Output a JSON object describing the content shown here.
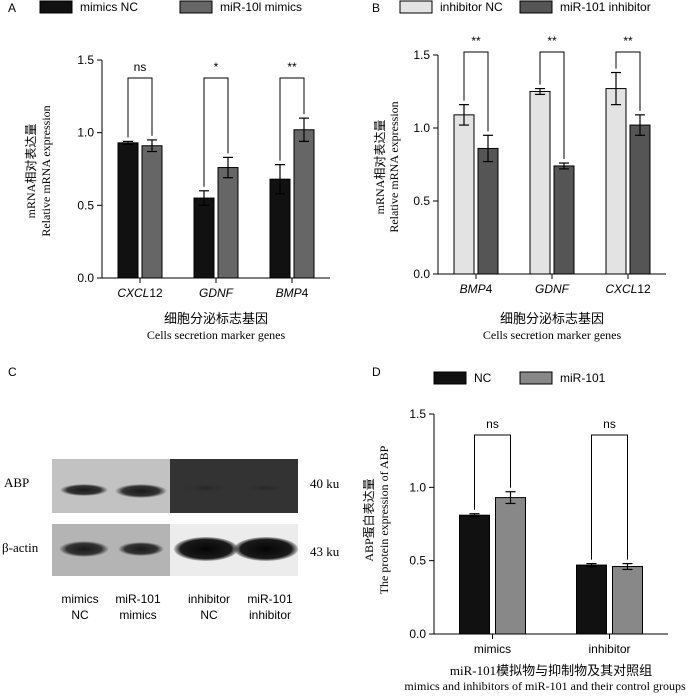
{
  "chart_data": [
    {
      "panel_label": "A",
      "type": "bar",
      "categories": [
        "CXCL12",
        "GDNF",
        "BMP4"
      ],
      "category_parts": [
        {
          "italic": "CXCL",
          "plain": "12"
        },
        {
          "italic": "GDNF",
          "plain": ""
        },
        {
          "italic": "BMP",
          "plain": "4"
        }
      ],
      "series": [
        {
          "name": "mimics NC",
          "values": [
            0.93,
            0.55,
            0.68
          ],
          "errors": [
            0.01,
            0.05,
            0.1
          ],
          "color": "#111111"
        },
        {
          "name": "miR-10l mimics",
          "values": [
            0.91,
            0.76,
            1.02
          ],
          "errors": [
            0.04,
            0.07,
            0.08
          ],
          "color": "#666666"
        }
      ],
      "significance": [
        "ns",
        "*",
        "**"
      ],
      "ylabel_cn": "mRNA相对表达量",
      "ylabel_en": "Relative mRNA expression",
      "xlabel_cn": "细胞分泌标志基因",
      "xlabel_en": "Cells secretion marker genes",
      "ylim": [
        0,
        1.5
      ],
      "yticks": [
        "0.0",
        "0.5",
        "1.0",
        "1.5"
      ],
      "legend_placement": "top"
    },
    {
      "panel_label": "B",
      "type": "bar",
      "categories": [
        "BMP4",
        "GDNF",
        "CXCL12"
      ],
      "category_parts": [
        {
          "italic": "BMP",
          "plain": "4"
        },
        {
          "italic": "GDNF",
          "plain": ""
        },
        {
          "italic": "CXCL",
          "plain": "12"
        }
      ],
      "series": [
        {
          "name": "inhibitor NC",
          "values": [
            1.09,
            1.25,
            1.27
          ],
          "errors": [
            0.07,
            0.02,
            0.11
          ],
          "color": "#e3e3e3"
        },
        {
          "name": "miR-101 inhibitor",
          "values": [
            0.86,
            0.74,
            1.02
          ],
          "errors": [
            0.09,
            0.02,
            0.07
          ],
          "color": "#555555"
        }
      ],
      "significance": [
        "**",
        "**",
        "**"
      ],
      "ylabel_cn": "mRNA相对表达量",
      "ylabel_en": "Relative mRNA expression",
      "xlabel_cn": "细胞分泌标志基因",
      "xlabel_en": "Cells secretion marker genes",
      "ylim": [
        0,
        1.5
      ],
      "yticks": [
        "0.0",
        "0.5",
        "1.0",
        "1.5"
      ],
      "legend_placement": "top"
    },
    {
      "panel_label": "D",
      "type": "bar",
      "categories": [
        "mimics",
        "inhibitor"
      ],
      "series": [
        {
          "name": "NC",
          "values": [
            0.81,
            0.47
          ],
          "errors": [
            0.01,
            0.01
          ],
          "color": "#111111"
        },
        {
          "name": "miR-101",
          "values": [
            0.93,
            0.46
          ],
          "errors": [
            0.04,
            0.02
          ],
          "color": "#888888"
        }
      ],
      "significance": [
        "ns",
        "ns"
      ],
      "ylabel_cn": "ABP蛋白表达量",
      "ylabel_en": "The protein expression of ABP",
      "xlabel_cn": "miR-101模拟物与抑制物及其对照组",
      "xlabel_en": "mimics and inhibitors of miR-101 and their control groups",
      "ylim": [
        0,
        1.5
      ],
      "yticks": [
        "0.0",
        "0.5",
        "1.0",
        "1.5"
      ],
      "legend_placement": "top"
    }
  ],
  "blot": {
    "panel_label": "C",
    "rows": [
      {
        "name": "ABP",
        "size": "40 ku"
      },
      {
        "name": "β-actin",
        "size": "43 ku"
      }
    ],
    "lanes": [
      {
        "line1": "mimics",
        "line2": "NC"
      },
      {
        "line1": "miR-101",
        "line2": "mimics"
      },
      {
        "line1": "inhibitor",
        "line2": "NC"
      },
      {
        "line1": "miR-101",
        "line2": "inhibitor"
      }
    ],
    "colors": {
      "abp_left": "#c2c2c2",
      "abp_right": "#333333",
      "actin_left": "#b4b4b4",
      "actin_right": "#ececec"
    }
  }
}
